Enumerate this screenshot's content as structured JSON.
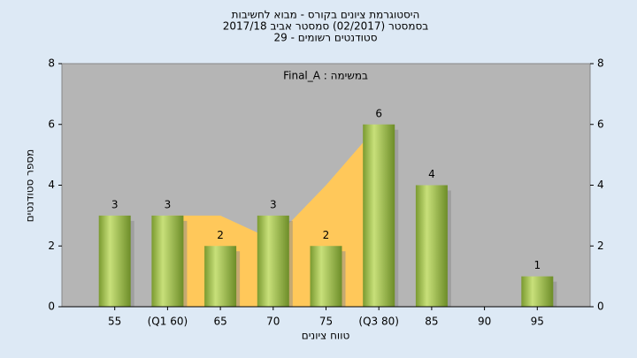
{
  "chart_data": {
    "type": "bar",
    "title_lines": [
      "היסטוגרמת ציונים בקורס - מבוא לחשיבות",
      "בסמסטר  (02/2017)  סמסטר אביב 2017/18",
      "סטודנטים רשומים - 29"
    ],
    "annotation": "Final_A : במשימה",
    "x_label": "טווח ציונים",
    "y_label": "מספר סטודנטים",
    "categories": [
      "55",
      "(Q1 60)",
      "65",
      "70",
      "75",
      "(Q3 80)",
      "85",
      "90",
      "95"
    ],
    "values": [
      3,
      3,
      2,
      3,
      2,
      6,
      4,
      0,
      1
    ],
    "value_labels": [
      "3",
      "3",
      "2",
      "3",
      "2",
      "6",
      "4",
      null,
      "1"
    ],
    "color": "#9cc24a",
    "area": {
      "color": "#ffc85a",
      "values": [
        null,
        3,
        3,
        2.2,
        4,
        6,
        null,
        null,
        null
      ]
    },
    "ylim": [
      0,
      8
    ],
    "yticks": [
      0,
      2,
      4,
      6,
      8
    ],
    "y2lim": [
      0,
      8
    ],
    "y2ticks": [
      0,
      2,
      4,
      6,
      8
    ]
  }
}
